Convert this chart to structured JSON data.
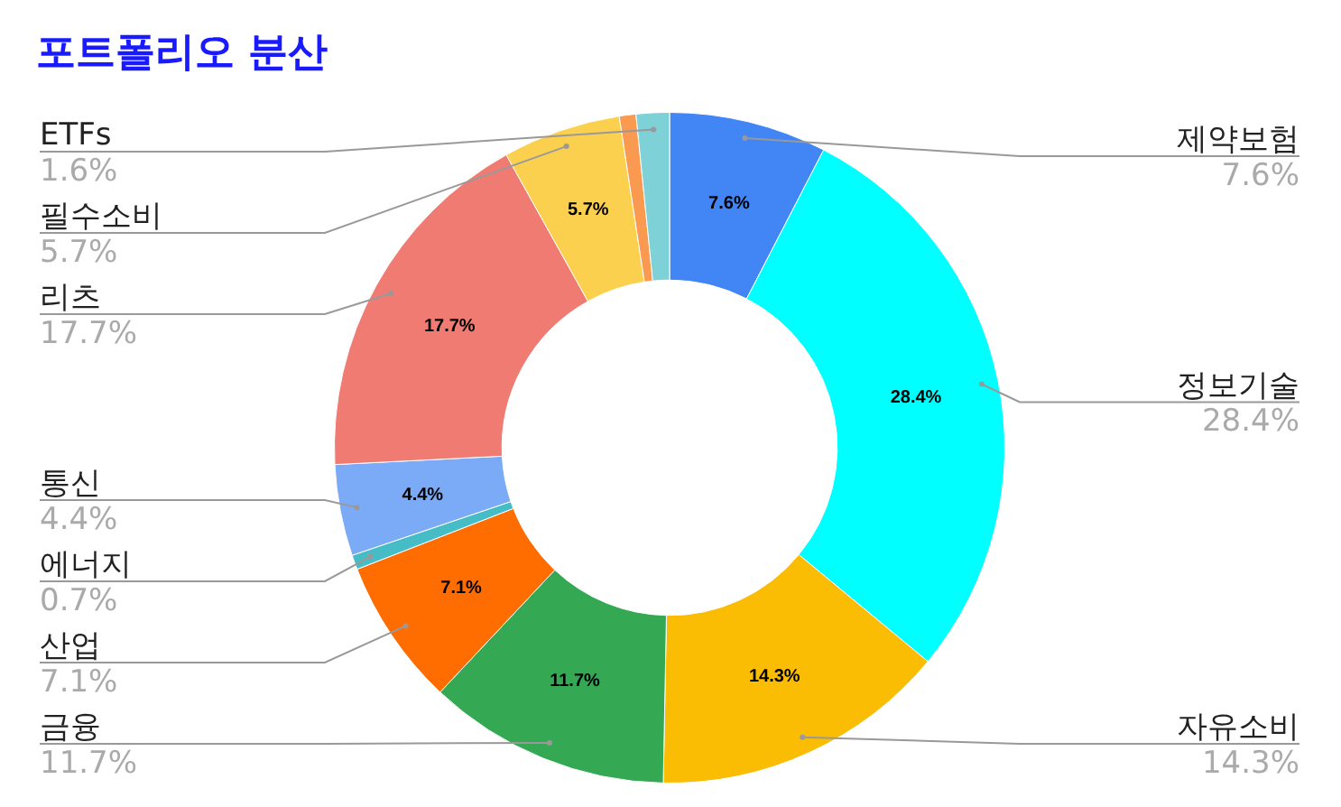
{
  "chart_data": {
    "type": "donut",
    "title": "포트폴리오 분산",
    "categories": [
      "제약보험",
      "정보기술",
      "자유소비",
      "금융",
      "산업",
      "에너지",
      "통신",
      "리츠",
      "필수소비",
      null,
      "ETFs"
    ],
    "values": [
      7.6,
      28.4,
      14.3,
      11.7,
      7.1,
      0.7,
      4.4,
      17.7,
      5.7,
      0.8,
      1.6
    ],
    "colors": [
      "#4285f4",
      "#00ffff",
      "#fbbc04",
      "#34a853",
      "#ff6d01",
      "#46bdc6",
      "#7baaf7",
      "#f07b72",
      "#fcd04f",
      "#f99a50",
      "#7ed1d7"
    ],
    "value_labels": [
      "7.6%",
      "28.4%",
      "14.3%",
      "11.7%",
      "7.1%",
      "0.7%",
      "4.4%",
      "17.7%",
      "5.7%",
      null,
      "1.6%"
    ]
  }
}
